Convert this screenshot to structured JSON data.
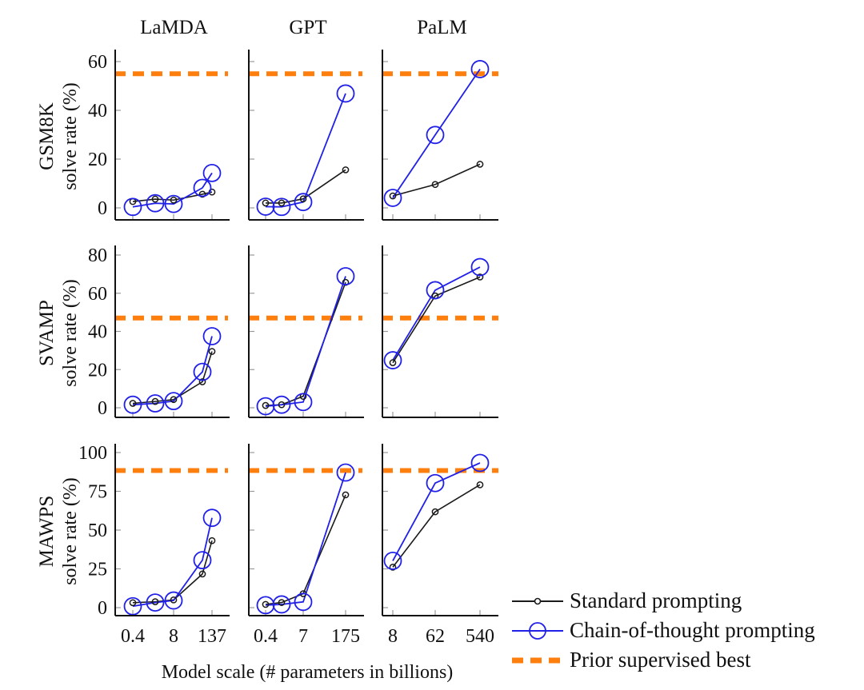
{
  "chart_data": {
    "type": "line",
    "layout": "grid-3x3",
    "xlabel": "Model scale (# parameters in billions)",
    "columns": [
      {
        "model": "LaMDA",
        "x_tick_labels": [
          "0.4",
          "8",
          "137"
        ],
        "x_points": [
          "0.4",
          "2",
          "8",
          "68",
          "137"
        ],
        "tick_indices": [
          0,
          2,
          4
        ]
      },
      {
        "model": "GPT",
        "x_tick_labels": [
          "0.4",
          "7",
          "175"
        ],
        "x_points": [
          "0.4",
          "1.3",
          "7",
          "175"
        ],
        "tick_indices": [
          0,
          2,
          3
        ]
      },
      {
        "model": "PaLM",
        "x_tick_labels": [
          "8",
          "62",
          "540"
        ],
        "x_points": [
          "8",
          "62",
          "540"
        ],
        "tick_indices": [
          0,
          1,
          2
        ]
      }
    ],
    "rows": [
      {
        "dataset": "GSM8K",
        "ylabel": "solve rate (%)",
        "ylim": [
          0,
          60
        ],
        "yticks": [
          0,
          20,
          40,
          60
        ],
        "prior_supervised_best": 55,
        "panels": [
          {
            "model": "LaMDA",
            "standard": [
              2.6,
              3.6,
              3.2,
              5.6,
              6.5
            ],
            "cot": [
              0.4,
              1.9,
              1.6,
              8.2,
              14.3
            ]
          },
          {
            "model": "GPT",
            "standard": [
              2.0,
              2.0,
              3.7,
              15.6
            ],
            "cot": [
              0.5,
              0.4,
              2.4,
              46.9
            ]
          },
          {
            "model": "PaLM",
            "standard": [
              4.9,
              9.6,
              17.9
            ],
            "cot": [
              4.1,
              29.9,
              56.9
            ]
          }
        ]
      },
      {
        "dataset": "SVAMP",
        "ylabel": "solve rate (%)",
        "ylim": [
          0,
          80
        ],
        "yticks": [
          0,
          20,
          40,
          60,
          80
        ],
        "prior_supervised_best": 47,
        "panels": [
          {
            "model": "LaMDA",
            "standard": [
              2.3,
              3.3,
              4.3,
              13.6,
              29.5
            ],
            "cot": [
              1.6,
              2.3,
              3.5,
              18.8,
              37.5
            ]
          },
          {
            "model": "GPT",
            "standard": [
              1.2,
              1.6,
              6.0,
              65.7
            ],
            "cot": [
              0.8,
              1.6,
              3.0,
              68.9
            ]
          },
          {
            "model": "PaLM",
            "standard": [
              23.6,
              58.6,
              68.5
            ],
            "cot": [
              24.9,
              61.6,
              73.7
            ]
          }
        ]
      },
      {
        "dataset": "MAWPS",
        "ylabel": "solve rate (%)",
        "ylim": [
          0,
          100
        ],
        "yticks": [
          0,
          25,
          50,
          75,
          100
        ],
        "prior_supervised_best": 88.4,
        "panels": [
          {
            "model": "LaMDA",
            "standard": [
              3.2,
              3.8,
              5.0,
              21.7,
              43.2
            ],
            "cot": [
              0.9,
              3.3,
              4.6,
              30.6,
              57.9
            ]
          },
          {
            "model": "GPT",
            "standard": [
              2.1,
              3.3,
              9.0,
              72.7
            ],
            "cot": [
              1.6,
              2.1,
              3.7,
              87.1
            ]
          },
          {
            "model": "PaLM",
            "standard": [
              26.1,
              61.8,
              79.2
            ],
            "cot": [
              30.2,
              80.3,
              93.3
            ]
          }
        ]
      }
    ],
    "legend": {
      "placement": "bottom-right",
      "items": [
        {
          "label": "Standard prompting",
          "marker": "small-circle",
          "color": "#1a1a1a"
        },
        {
          "label": "Chain-of-thought prompting",
          "marker": "large-circle",
          "color": "#2020e8"
        },
        {
          "label": "Prior supervised best",
          "marker": "dashed-line",
          "color": "#ff7f0e"
        }
      ]
    },
    "colors": {
      "standard": "#1a1a1a",
      "cot": "#2020e8",
      "prior_best": "#ff7f0e",
      "axis": "#111111",
      "tick": "#999999"
    }
  }
}
